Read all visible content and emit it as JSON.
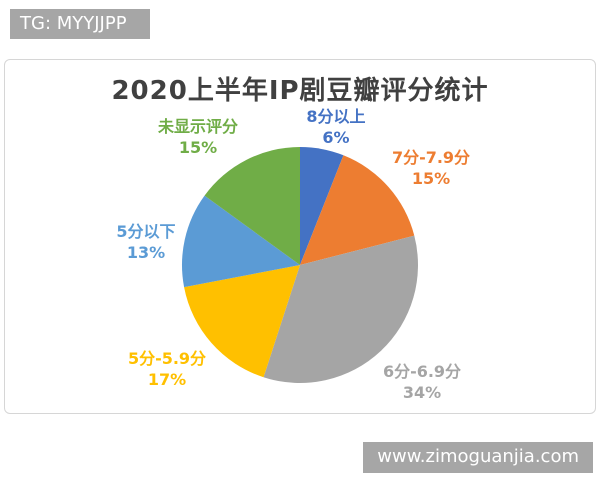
{
  "watermarks": {
    "top": "TG: MYYJJPP",
    "bottom": "www.zimoguanjia.com"
  },
  "colors": {
    "badge_bg": "#a6a6a6",
    "panel_border": "#d6d6d6",
    "title_text": "#404040"
  },
  "chart_data": {
    "type": "pie",
    "title": "2020上半年IP剧豆瓣评分统计",
    "start_angle_deg": 0,
    "direction": "clockwise",
    "legend_position": "none",
    "labels_style": "category name + percentage, outside slices, colored per slice",
    "slices": [
      {
        "label": "8分以上",
        "value": 6,
        "pct_text": "6%",
        "color": "#4472C4"
      },
      {
        "label": "7分-7.9分",
        "value": 15,
        "pct_text": "15%",
        "color": "#ED7D31"
      },
      {
        "label": "6分-6.9分",
        "value": 34,
        "pct_text": "34%",
        "color": "#A5A5A5"
      },
      {
        "label": "5分-5.9分",
        "value": 17,
        "pct_text": "17%",
        "color": "#FFC000"
      },
      {
        "label": "5分以下",
        "value": 13,
        "pct_text": "13%",
        "color": "#5B9BD5"
      },
      {
        "label": "未显示评分",
        "value": 15,
        "pct_text": "15%",
        "color": "#70AD47"
      }
    ]
  }
}
